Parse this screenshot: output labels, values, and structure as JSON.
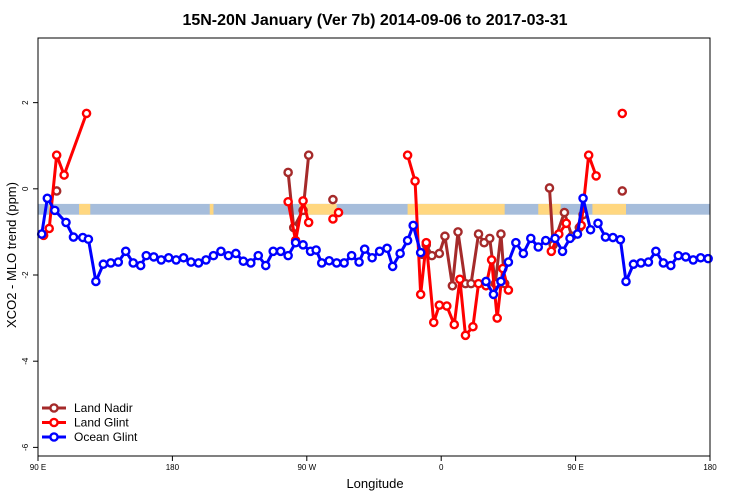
{
  "chart_data": {
    "type": "line",
    "title": "15N-20N January (Ver 7b)   2014-09-06 to 2017-03-31",
    "xlabel": "Longitude",
    "ylabel": "XCO2 - MLO trend (ppm)",
    "xlim": [
      0,
      360
    ],
    "ylim": [
      -6.2,
      3.5
    ],
    "x_ticks": [
      {
        "value": 0,
        "label": "90 E"
      },
      {
        "value": 72,
        "label": "180"
      },
      {
        "value": 144,
        "label": "90 W"
      },
      {
        "value": 216,
        "label": "0"
      },
      {
        "value": 288,
        "label": "90 E"
      },
      {
        "value": 360,
        "label": "180"
      }
    ],
    "y_ticks": [
      {
        "value": 2,
        "label": "2"
      },
      {
        "value": 0,
        "label": "0"
      },
      {
        "value": -2,
        "label": "-2"
      },
      {
        "value": -4,
        "label": "-4"
      },
      {
        "value": -6,
        "label": "-6"
      }
    ],
    "legend_position": "bottom-left",
    "colors": {
      "land_nadir": "#a52a2a",
      "land_glint": "#ff0000",
      "ocean_glint": "#0000ff",
      "land_strip": "#ffd780",
      "ocean_strip": "#a6bddb"
    },
    "land_ocean_strip": {
      "y_top": -0.35,
      "y_bottom": -0.6,
      "land_ranges": [
        [
          6,
          8
        ],
        [
          22,
          28
        ],
        [
          92,
          94
        ],
        [
          140,
          160
        ],
        [
          198,
          250
        ],
        [
          268,
          280
        ],
        [
          297,
          315
        ]
      ]
    },
    "series": [
      {
        "name": "Land Nadir",
        "color": "#a52a2a",
        "segments": [
          [
            [
              10,
              -0.05
            ]
          ],
          [
            [
              134,
              0.38
            ],
            [
              137,
              -0.9
            ],
            [
              142,
              -0.5
            ],
            [
              145,
              0.78
            ]
          ],
          [
            [
              158,
              -0.25
            ]
          ],
          [
            [
              206,
              -1.52
            ],
            [
              208,
              -1.3
            ],
            [
              211,
              -1.55
            ],
            [
              215,
              -1.5
            ],
            [
              218,
              -1.1
            ],
            [
              222,
              -2.25
            ],
            [
              225,
              -1.0
            ],
            [
              229,
              -2.2
            ],
            [
              232,
              -2.2
            ],
            [
              236,
              -1.05
            ],
            [
              239,
              -1.25
            ],
            [
              242,
              -1.15
            ],
            [
              245,
              -2.2
            ],
            [
              248,
              -1.05
            ],
            [
              250,
              -2.2
            ]
          ],
          [
            [
              274,
              0.02
            ],
            [
              276,
              -1.3
            ],
            [
              282,
              -0.55
            ],
            [
              286,
              -1.1
            ],
            [
              290,
              -0.9
            ],
            [
              292,
              -0.6
            ]
          ],
          [
            [
              313,
              -0.05
            ]
          ]
        ]
      },
      {
        "name": "Land Glint",
        "color": "#ff0000",
        "segments": [
          [
            [
              3,
              -1.08
            ],
            [
              6,
              -0.92
            ],
            [
              10,
              0.78
            ],
            [
              14,
              0.32
            ],
            [
              26,
              1.75
            ]
          ],
          [
            [
              134,
              -0.3
            ],
            [
              138,
              -1.2
            ],
            [
              142,
              -0.28
            ],
            [
              145,
              -0.78
            ]
          ],
          [
            [
              158,
              -0.7
            ],
            [
              161,
              -0.55
            ]
          ],
          [
            [
              198,
              0.78
            ],
            [
              202,
              0.18
            ],
            [
              205,
              -2.45
            ],
            [
              208,
              -1.25
            ],
            [
              212,
              -3.1
            ],
            [
              215,
              -2.7
            ],
            [
              219,
              -2.72
            ],
            [
              223,
              -3.15
            ],
            [
              226,
              -2.1
            ],
            [
              229,
              -3.4
            ],
            [
              233,
              -3.2
            ],
            [
              236,
              -2.2
            ],
            [
              240,
              -2.25
            ],
            [
              243,
              -1.65
            ],
            [
              246,
              -3.0
            ],
            [
              249,
              -1.85
            ],
            [
              252,
              -2.35
            ]
          ],
          [
            [
              275,
              -1.45
            ],
            [
              279,
              -1.05
            ],
            [
              283,
              -0.8
            ]
          ],
          [
            [
              291,
              -0.85
            ],
            [
              295,
              0.78
            ],
            [
              299,
              0.3
            ]
          ],
          [
            [
              313,
              1.75
            ]
          ]
        ]
      },
      {
        "name": "Ocean Glint",
        "color": "#0000ff",
        "segments": [
          [
            [
              2,
              -1.05
            ],
            [
              5,
              -0.22
            ],
            [
              9,
              -0.5
            ],
            [
              15,
              -0.78
            ],
            [
              19,
              -1.12
            ],
            [
              24,
              -1.13
            ],
            [
              27,
              -1.17
            ],
            [
              31,
              -2.15
            ],
            [
              35,
              -1.75
            ],
            [
              39,
              -1.72
            ],
            [
              43,
              -1.7
            ],
            [
              47,
              -1.45
            ],
            [
              51,
              -1.72
            ],
            [
              55,
              -1.78
            ],
            [
              58,
              -1.55
            ],
            [
              62,
              -1.58
            ],
            [
              66,
              -1.65
            ],
            [
              70,
              -1.6
            ],
            [
              74,
              -1.65
            ],
            [
              78,
              -1.6
            ],
            [
              82,
              -1.7
            ],
            [
              86,
              -1.72
            ],
            [
              90,
              -1.65
            ],
            [
              94,
              -1.55
            ],
            [
              98,
              -1.45
            ],
            [
              102,
              -1.55
            ],
            [
              106,
              -1.5
            ],
            [
              110,
              -1.68
            ],
            [
              114,
              -1.72
            ],
            [
              118,
              -1.55
            ],
            [
              122,
              -1.78
            ],
            [
              126,
              -1.45
            ],
            [
              130,
              -1.45
            ],
            [
              134,
              -1.55
            ],
            [
              138,
              -1.25
            ],
            [
              142,
              -1.3
            ],
            [
              146,
              -1.45
            ],
            [
              149,
              -1.42
            ],
            [
              152,
              -1.72
            ],
            [
              156,
              -1.67
            ],
            [
              160,
              -1.72
            ],
            [
              164,
              -1.72
            ],
            [
              168,
              -1.55
            ],
            [
              172,
              -1.7
            ],
            [
              175,
              -1.4
            ],
            [
              179,
              -1.6
            ],
            [
              183,
              -1.45
            ],
            [
              187,
              -1.38
            ],
            [
              190,
              -1.8
            ],
            [
              194,
              -1.5
            ],
            [
              198,
              -1.2
            ],
            [
              201,
              -0.85
            ],
            [
              205,
              -1.48
            ]
          ],
          [
            [
              240,
              -2.15
            ],
            [
              244,
              -2.45
            ],
            [
              248,
              -2.15
            ],
            [
              252,
              -1.7
            ],
            [
              256,
              -1.25
            ],
            [
              260,
              -1.5
            ],
            [
              264,
              -1.15
            ],
            [
              268,
              -1.35
            ],
            [
              272,
              -1.2
            ],
            [
              277,
              -1.15
            ],
            [
              281,
              -1.45
            ],
            [
              285,
              -1.15
            ],
            [
              289,
              -1.05
            ],
            [
              292,
              -0.22
            ],
            [
              296,
              -0.95
            ]
          ],
          [
            [
              300,
              -0.8
            ],
            [
              304,
              -1.12
            ],
            [
              308,
              -1.13
            ],
            [
              312,
              -1.18
            ],
            [
              315,
              -2.15
            ],
            [
              319,
              -1.75
            ],
            [
              323,
              -1.72
            ],
            [
              327,
              -1.7
            ],
            [
              331,
              -1.45
            ],
            [
              335,
              -1.72
            ],
            [
              339,
              -1.78
            ],
            [
              343,
              -1.55
            ],
            [
              347,
              -1.58
            ],
            [
              351,
              -1.65
            ],
            [
              355,
              -1.6
            ],
            [
              359,
              -1.62
            ]
          ]
        ]
      }
    ]
  }
}
